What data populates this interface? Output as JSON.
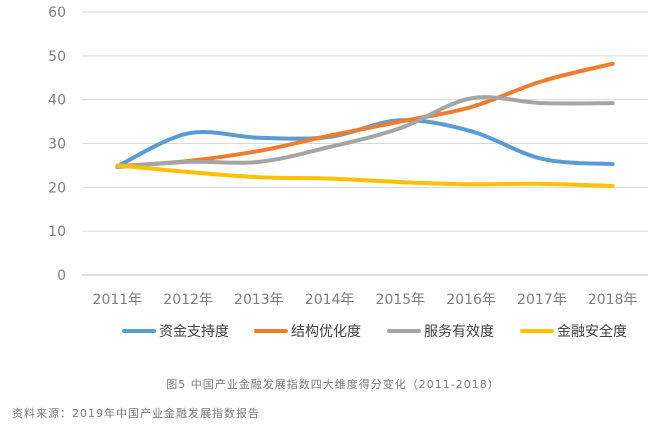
{
  "chart_data": {
    "type": "line",
    "categories": [
      "2011年",
      "2012年",
      "2013年",
      "2014年",
      "2015年",
      "2016年",
      "2017年",
      "2018年"
    ],
    "ylim": [
      0,
      60
    ],
    "yticks": [
      0,
      10,
      20,
      30,
      40,
      50,
      60
    ],
    "grid": true,
    "legend_position": "bottom",
    "series": [
      {
        "name": "资金支持度",
        "color": "#5b9bd5",
        "values": [
          24.8,
          32.3,
          31.3,
          31.5,
          35.3,
          32.8,
          26.5,
          25.3
        ]
      },
      {
        "name": "结构优化度",
        "color": "#ed7d31",
        "values": [
          24.8,
          26.0,
          28.3,
          31.8,
          35.0,
          38.3,
          44.2,
          48.2
        ]
      },
      {
        "name": "服务有效度",
        "color": "#a5a5a5",
        "values": [
          24.6,
          25.8,
          25.8,
          29.2,
          33.5,
          40.3,
          39.2,
          39.2
        ]
      },
      {
        "name": "金融安全度",
        "color": "#ffc000",
        "values": [
          25.0,
          23.5,
          22.3,
          22.0,
          21.2,
          20.7,
          20.8,
          20.3
        ]
      }
    ]
  },
  "caption": "图5 中国产业金融发展指数四大维度得分变化（2011-2018）",
  "source": "资料来源：2019年中国产业金融发展指数报告"
}
